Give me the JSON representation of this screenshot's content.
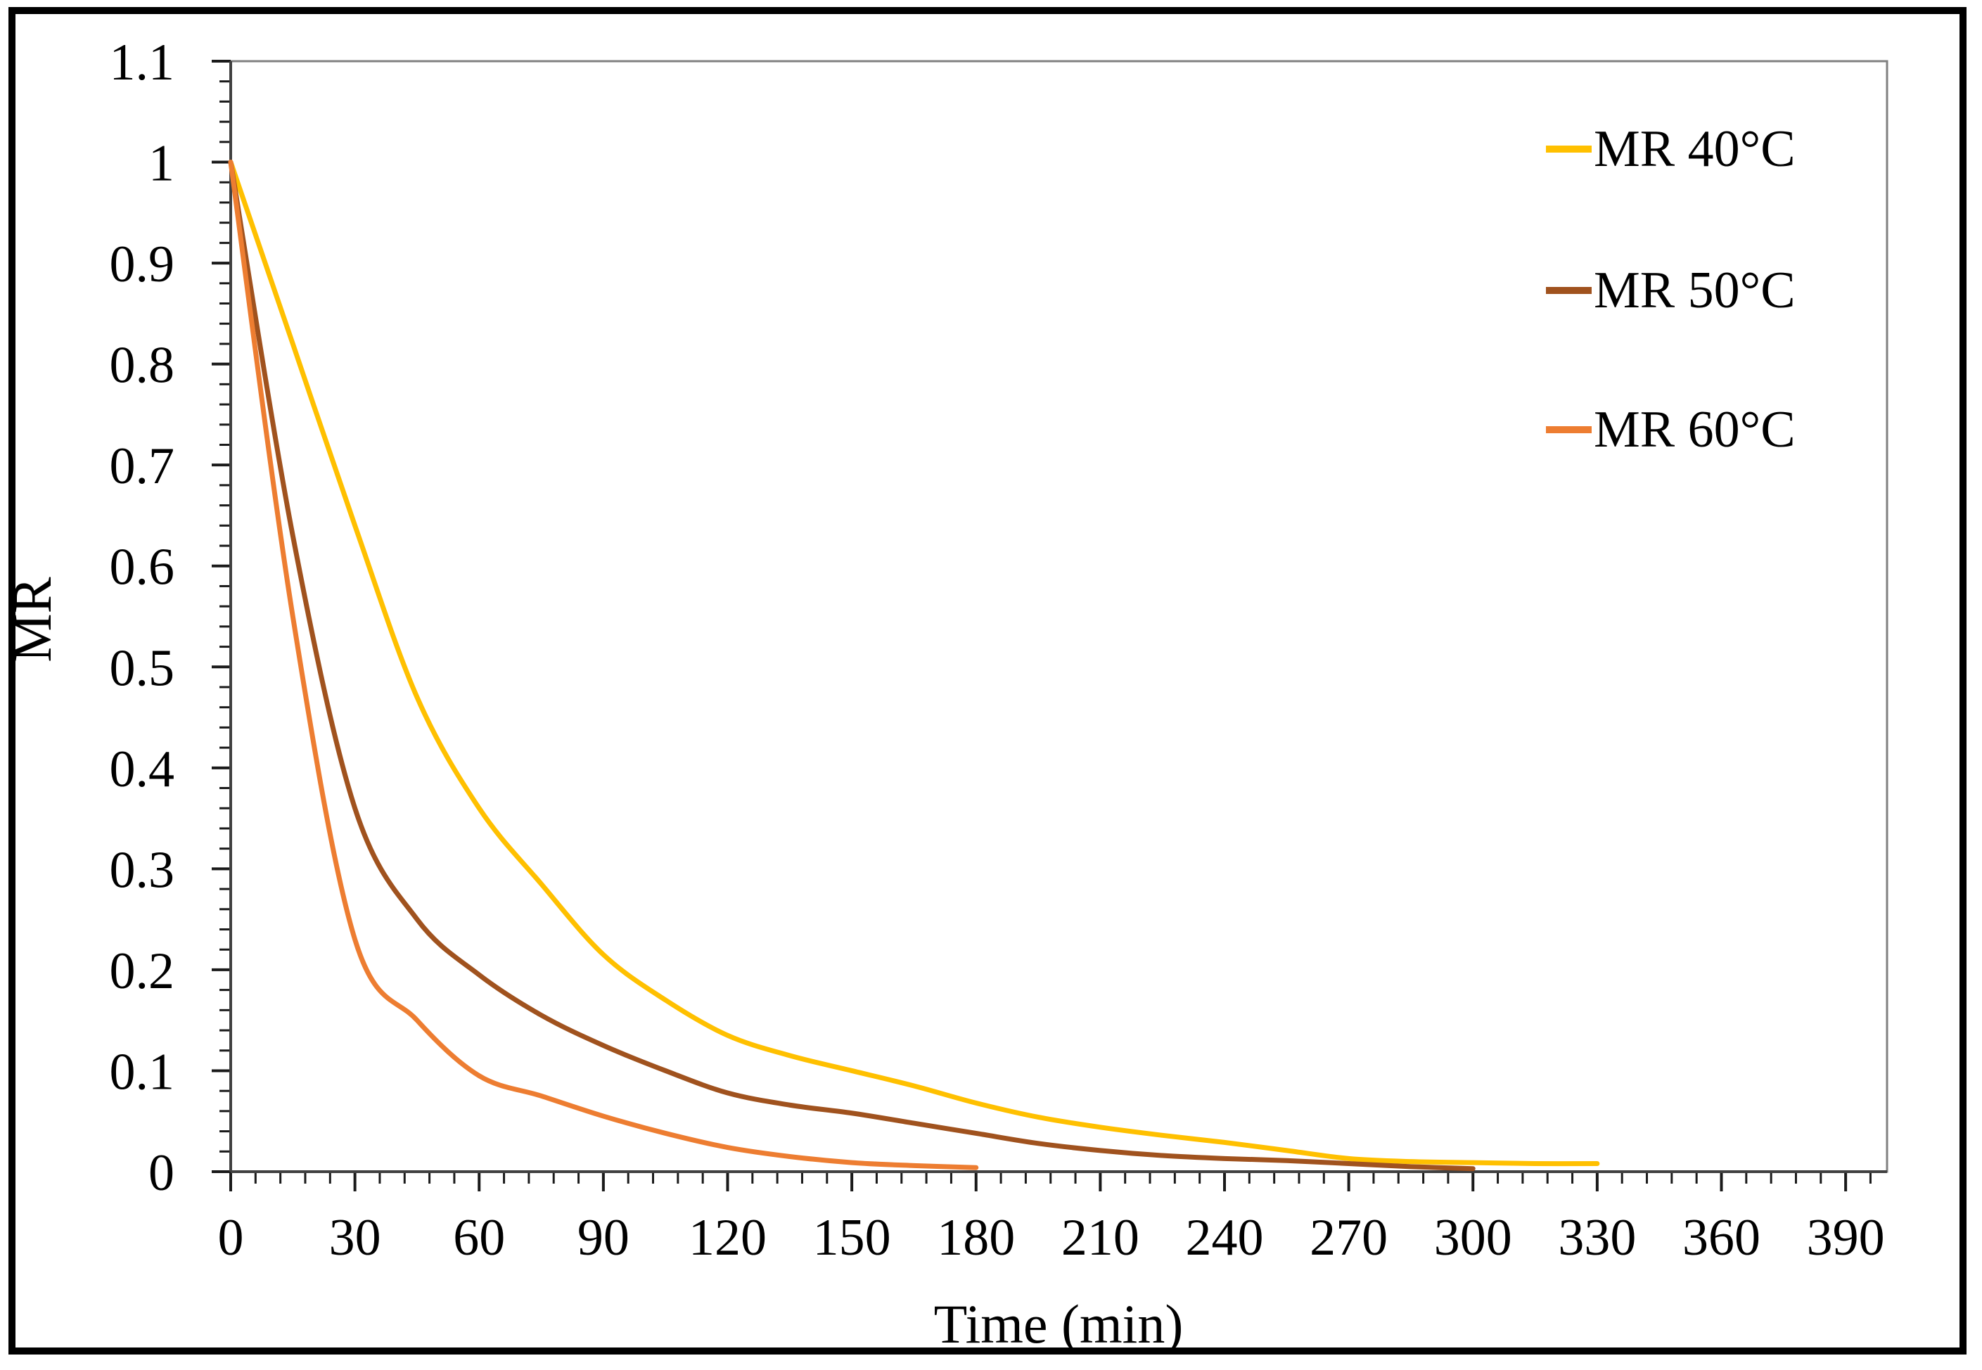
{
  "chart_data": {
    "type": "line",
    "title": "",
    "xlabel": "Time (min)",
    "ylabel": "MR",
    "xlim": [
      0,
      400
    ],
    "ylim": [
      0,
      1.1
    ],
    "grid": false,
    "legend_position": "upper right",
    "x_major_ticks": [
      0,
      30,
      60,
      90,
      120,
      150,
      180,
      210,
      240,
      270,
      300,
      330,
      360,
      390
    ],
    "x_minor_tick_step": 6,
    "y_major_ticks": [
      {
        "value": 0,
        "label": "0"
      },
      {
        "value": 0.1,
        "label": "0.1"
      },
      {
        "value": 0.2,
        "label": "0.2"
      },
      {
        "value": 0.3,
        "label": "0.3"
      },
      {
        "value": 0.4,
        "label": "0.4"
      },
      {
        "value": 0.5,
        "label": "0.5"
      },
      {
        "value": 0.6,
        "label": "0.6"
      },
      {
        "value": 0.7,
        "label": "0.7"
      },
      {
        "value": 0.8,
        "label": "0.8"
      },
      {
        "value": 0.9,
        "label": "0.9"
      },
      {
        "value": 1,
        "label": "1"
      },
      {
        "value": 1.1,
        "label": "1.1"
      }
    ],
    "y_minor_tick_step": 0.02,
    "series": [
      {
        "name": "MR 40°C",
        "color": "#FFC000",
        "points": [
          [
            0,
            1.0
          ],
          [
            15,
            0.82
          ],
          [
            30,
            0.64
          ],
          [
            45,
            0.47
          ],
          [
            60,
            0.36
          ],
          [
            75,
            0.285
          ],
          [
            90,
            0.215
          ],
          [
            105,
            0.17
          ],
          [
            120,
            0.135
          ],
          [
            135,
            0.115
          ],
          [
            150,
            0.1
          ],
          [
            165,
            0.085
          ],
          [
            180,
            0.068
          ],
          [
            195,
            0.054
          ],
          [
            210,
            0.044
          ],
          [
            225,
            0.036
          ],
          [
            240,
            0.029
          ],
          [
            255,
            0.021
          ],
          [
            270,
            0.013
          ],
          [
            285,
            0.01
          ],
          [
            300,
            0.009
          ],
          [
            315,
            0.008
          ],
          [
            330,
            0.008
          ]
        ]
      },
      {
        "name": "MR 50°C",
        "color": "#A0521E",
        "points": [
          [
            0,
            1.0
          ],
          [
            15,
            0.63
          ],
          [
            30,
            0.36
          ],
          [
            45,
            0.25
          ],
          [
            60,
            0.195
          ],
          [
            75,
            0.155
          ],
          [
            90,
            0.125
          ],
          [
            105,
            0.1
          ],
          [
            120,
            0.078
          ],
          [
            135,
            0.066
          ],
          [
            150,
            0.058
          ],
          [
            165,
            0.048
          ],
          [
            180,
            0.038
          ],
          [
            195,
            0.028
          ],
          [
            210,
            0.021
          ],
          [
            225,
            0.016
          ],
          [
            240,
            0.013
          ],
          [
            255,
            0.011
          ],
          [
            270,
            0.008
          ],
          [
            285,
            0.005
          ],
          [
            300,
            0.003
          ]
        ]
      },
      {
        "name": "MR 60°C",
        "color": "#ED7D31",
        "points": [
          [
            0,
            1.0
          ],
          [
            15,
            0.55
          ],
          [
            30,
            0.23
          ],
          [
            45,
            0.15
          ],
          [
            60,
            0.095
          ],
          [
            75,
            0.075
          ],
          [
            90,
            0.055
          ],
          [
            105,
            0.038
          ],
          [
            120,
            0.024
          ],
          [
            135,
            0.015
          ],
          [
            150,
            0.009
          ],
          [
            165,
            0.006
          ],
          [
            180,
            0.004
          ]
        ]
      }
    ],
    "axis_colors": {
      "frame": "#808080",
      "axis_line": "#404040",
      "tick": "#1a1a1a"
    }
  }
}
